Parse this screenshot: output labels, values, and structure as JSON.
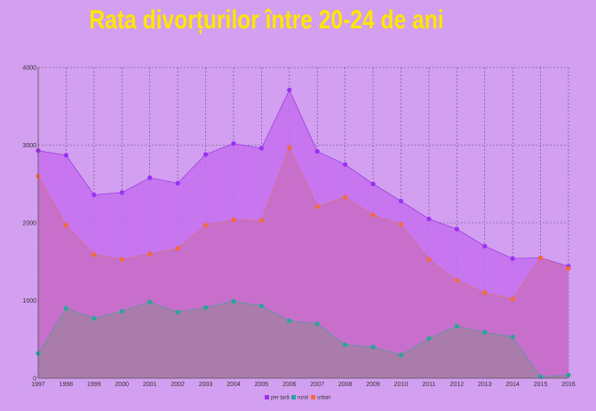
{
  "chart_data": {
    "type": "area",
    "title": "Rata divorțurilor între 20-24  de ani",
    "xlabel": "",
    "ylabel": "",
    "x": [
      "1997",
      "1998",
      "1999",
      "2000",
      "2001",
      "2002",
      "2003",
      "2004",
      "2005",
      "2006",
      "2007",
      "2008",
      "2009",
      "2010",
      "2011",
      "2012",
      "2013",
      "2014",
      "2015",
      "2016"
    ],
    "ylim": [
      0,
      4000
    ],
    "yticks": [
      "0",
      "1000",
      "2000",
      "3000",
      "4000"
    ],
    "grid": true,
    "legend_position": "bottom",
    "series": [
      {
        "name": "per țară",
        "color": "#9b30f5",
        "values": [
          2930,
          2870,
          2360,
          2390,
          2580,
          2510,
          2880,
          3020,
          2960,
          3710,
          2920,
          2750,
          2500,
          2280,
          2050,
          1920,
          1700,
          1540,
          1550,
          1440
        ]
      },
      {
        "name": "urban",
        "color": "#f26b3a",
        "values": [
          2600,
          1970,
          1590,
          1530,
          1600,
          1670,
          1970,
          2040,
          2030,
          2970,
          2210,
          2330,
          2100,
          1980,
          1530,
          1260,
          1100,
          1020,
          1550,
          1410
        ]
      },
      {
        "name": "rural",
        "color": "#26a69a",
        "values": [
          320,
          900,
          770,
          860,
          980,
          850,
          910,
          990,
          930,
          740,
          700,
          430,
          400,
          300,
          510,
          670,
          590,
          530,
          20,
          40
        ]
      }
    ]
  }
}
